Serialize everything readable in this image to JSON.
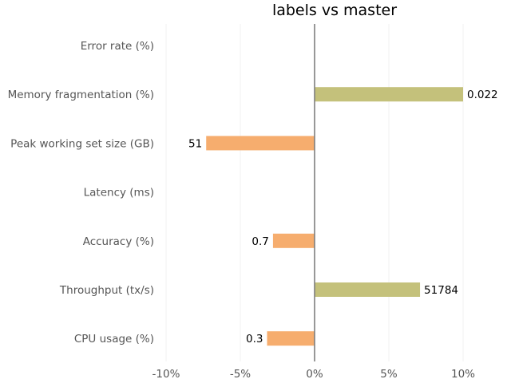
{
  "colors": {
    "positive": "#c4c17b",
    "negative": "#f6ad6e",
    "zero_line": "#7f7f7f",
    "grid": "#f2f2f2",
    "text": "#555555"
  },
  "chart_data": {
    "type": "bar",
    "orientation": "horizontal",
    "title": "labels vs master",
    "xlabel": "",
    "ylabel": "",
    "xlim": [
      -10,
      10
    ],
    "x_unit": "%",
    "grid": true,
    "x_ticks": [
      -10,
      -5,
      0,
      5,
      10
    ],
    "x_tick_labels": [
      "-10%",
      "-5%",
      "0%",
      "5%",
      "10%"
    ],
    "categories": [
      "Error rate (%)",
      "Memory fragmentation (%)",
      "Peak working set size (GB)",
      "Latency (ms)",
      "Accuracy (%)",
      "Throughput (tx/s)",
      "CPU usage (%)"
    ],
    "values": [
      0,
      10,
      -7.3,
      0,
      -2.8,
      7.1,
      -3.2
    ],
    "value_labels": [
      "",
      "0.022",
      "51",
      "",
      "0.7",
      "51784",
      "0.3"
    ]
  }
}
